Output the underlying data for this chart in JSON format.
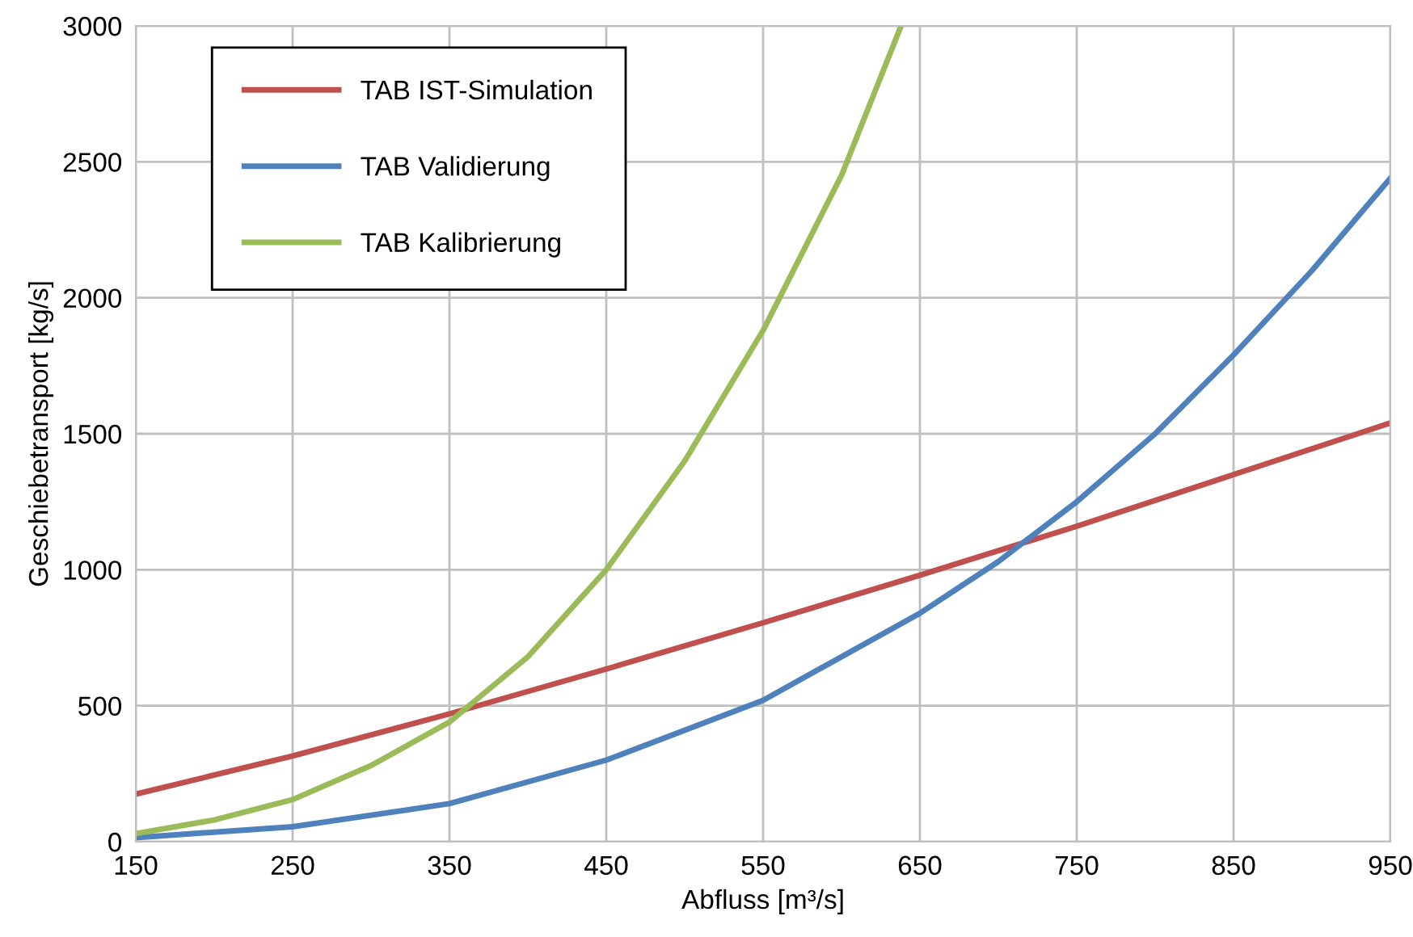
{
  "chart_data": {
    "type": "line",
    "xlabel": "Abfluss [m³/s]",
    "ylabel": "Geschiebetransport [kg/s]",
    "xlim": [
      150,
      950
    ],
    "xticks": [
      150,
      250,
      350,
      450,
      550,
      650,
      750,
      850,
      950
    ],
    "ylim": [
      0,
      3000
    ],
    "yticks": [
      0,
      500,
      1000,
      1500,
      2000,
      2500,
      3000
    ],
    "grid": true,
    "legend": "top left",
    "marker": "none",
    "line_style": "solid",
    "series": [
      {
        "name": "TAB IST-Simulation",
        "color": "#c0504d",
        "x": [
          150,
          250,
          350,
          450,
          550,
          650,
          750,
          850,
          950
        ],
        "values": [
          175,
          315,
          470,
          635,
          805,
          980,
          1160,
          1350,
          1540
        ]
      },
      {
        "name": "TAB Validierung",
        "color": "#4f81bd",
        "x": [
          150,
          250,
          350,
          450,
          550,
          650,
          700,
          750,
          800,
          850,
          900,
          950
        ],
        "values": [
          15,
          55,
          140,
          300,
          520,
          840,
          1030,
          1250,
          1500,
          1790,
          2100,
          2440
        ]
      },
      {
        "name": "TAB Kalibrierung",
        "color": "#9bbb59",
        "x": [
          150,
          200,
          250,
          300,
          350,
          400,
          450,
          500,
          550,
          600,
          638
        ],
        "values": [
          30,
          80,
          155,
          280,
          440,
          680,
          1000,
          1400,
          1880,
          2450,
          3000
        ]
      }
    ]
  }
}
